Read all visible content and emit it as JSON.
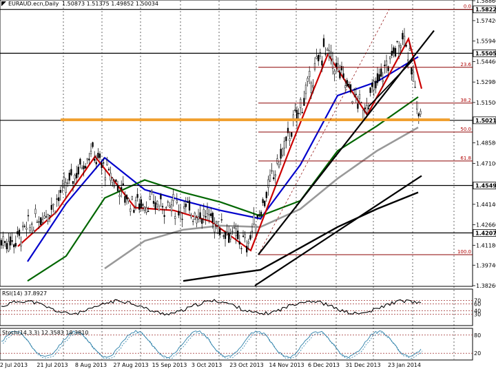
{
  "header": {
    "symbol": "EURAUD.ecn,Daily",
    "ohlc": "1.5087​3 1.51375 1.49852 1.50034"
  },
  "rsi": {
    "label": "RSI(14) 37.8927",
    "levels": [
      "70",
      "60",
      "40",
      "30"
    ]
  },
  "stoch": {
    "label": "Stoch(14,3,3) 12.3583 18.3810",
    "levels": [
      "80",
      "20"
    ]
  },
  "price_axis": {
    "ticks": [
      "1.58860",
      "1.57420",
      "1.55940",
      "1.54460",
      "1.52980",
      "1.51500",
      "1.48580",
      "1.47100",
      "1.44140",
      "1.42660",
      "1.41180",
      "1.39740",
      "1.38260"
    ],
    "highlighted": [
      "1.58229",
      "1.55058",
      "1.50212",
      "1.45499",
      "1.42072"
    ]
  },
  "fib_levels": [
    "0.0",
    "23.6",
    "38.2",
    "50.0",
    "61.8",
    "100.0"
  ],
  "date_axis": [
    "2 Jul 2013",
    "21 Jul 2013",
    "8 Aug 2013",
    "27 Aug 2013",
    "15 Sep 2013",
    "3 Oct 2013",
    "23 Oct 2013",
    "14 Nov 2013",
    "6 Dec 2013",
    "31 Dec 2013",
    "23 Jan 2014"
  ],
  "colors": {
    "ma_fast": "#cc0000",
    "ma_mid": "#0000cc",
    "ma_slow": "#006600",
    "ma_long": "#999999",
    "fib": "#8b0000",
    "support": "#f0a030",
    "trend": "#000000"
  },
  "chart_data": {
    "type": "line",
    "ylim": [
      1.3826,
      1.5886
    ],
    "series": [
      {
        "x": [
          "2 Jul 2013",
          "21 Jul 2013",
          "8 Aug 2013",
          "27 Aug 2013",
          "15 Sep 2013",
          "3 Oct 2013",
          "23 Oct 2013",
          "14 Nov 2013",
          "6 Dec 2013",
          "31 Dec 2013",
          "23 Jan 2014"
        ],
        "values": [
          1.415,
          1.44,
          1.48,
          1.443,
          1.441,
          1.433,
          1.412,
          1.487,
          1.554,
          1.51,
          1.565
        ]
      },
      {
        "x": [
          "2 Jul 2013",
          "21 Jul 2013",
          "8 Aug 2013",
          "27 Aug 2013",
          "15 Sep 2013",
          "3 Oct 2013",
          "23 Oct 2013",
          "14 Nov 2013",
          "6 Dec 2013",
          "31 Dec 2013",
          "23 Jan 2014"
        ],
        "values": [
          1.4,
          1.442,
          1.475,
          1.452,
          1.444,
          1.437,
          1.431,
          1.47,
          1.52,
          1.53,
          1.548
        ]
      },
      {
        "x": [
          "2 Jul 2013",
          "21 Jul 2013",
          "8 Aug 2013",
          "27 Aug 2013",
          "15 Sep 2013",
          "3 Oct 2013",
          "23 Oct 2013",
          "14 Nov 2013",
          "6 Dec 2013",
          "31 Dec 2013",
          "23 Jan 2014"
        ],
        "values": [
          1.386,
          1.404,
          1.446,
          1.459,
          1.45,
          1.443,
          1.433,
          1.444,
          1.48,
          1.498,
          1.519
        ]
      },
      {
        "x": [
          "8 Aug 2013",
          "27 Aug 2013",
          "15 Sep 2013",
          "3 Oct 2013",
          "23 Oct 2013",
          "14 Nov 2013",
          "6 Dec 2013",
          "31 Dec 2013",
          "23 Jan 2014"
        ],
        "values": [
          1.395,
          1.415,
          1.423,
          1.426,
          1.425,
          1.438,
          1.46,
          1.48,
          1.497
        ]
      },
      {
        "x": [
          "15 Sep 2013",
          "3 Oct 2013",
          "23 Oct 2013",
          "14 Nov 2013",
          "6 Dec 2013",
          "31 Dec 2013",
          "23 Jan 2014"
        ],
        "values": [
          1.386,
          1.39,
          1.394,
          1.41,
          1.425,
          1.438,
          1.45
        ]
      }
    ],
    "horizontal_levels": [
      1.58229,
      1.55058,
      1.50212,
      1.45499,
      1.42072
    ],
    "fibonacci": {
      "high": 1.58229,
      "low": 1.405
    }
  }
}
